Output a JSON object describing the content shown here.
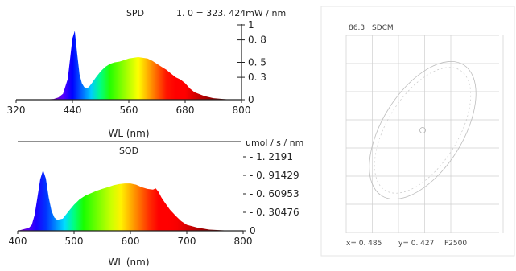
{
  "chart_data": [
    {
      "type": "area",
      "title": "SPD",
      "scale_note": "1. 0 = 323. 424mW / nm",
      "xlabel": "WL (nm)",
      "ylabel": "",
      "xlim": [
        320,
        800
      ],
      "ylim": [
        0,
        1
      ],
      "x_ticks": [
        "320",
        "440",
        "560",
        "680",
        "800"
      ],
      "y_ticks": [
        "0",
        "0. 3",
        "0. 5",
        "0. 8",
        "1"
      ],
      "y_tick_values": [
        0,
        0.3,
        0.5,
        0.8,
        1.0
      ],
      "x": [
        380,
        400,
        410,
        420,
        430,
        435,
        440,
        445,
        450,
        455,
        460,
        465,
        470,
        475,
        480,
        490,
        500,
        510,
        520,
        530,
        540,
        550,
        560,
        570,
        580,
        590,
        600,
        610,
        620,
        630,
        640,
        650,
        660,
        670,
        680,
        690,
        700,
        720,
        740,
        760,
        780
      ],
      "values": [
        0.0,
        0.01,
        0.03,
        0.08,
        0.28,
        0.55,
        0.82,
        0.92,
        0.62,
        0.34,
        0.22,
        0.17,
        0.15,
        0.17,
        0.21,
        0.3,
        0.38,
        0.44,
        0.48,
        0.5,
        0.51,
        0.53,
        0.55,
        0.56,
        0.57,
        0.56,
        0.55,
        0.52,
        0.48,
        0.44,
        0.4,
        0.35,
        0.3,
        0.27,
        0.22,
        0.15,
        0.1,
        0.05,
        0.02,
        0.01,
        0.0
      ]
    },
    {
      "type": "area",
      "title": "SQD",
      "scale_note": "umol / s / nm",
      "xlabel": "WL (nm)",
      "ylabel": "",
      "xlim": [
        400,
        800
      ],
      "ylim": [
        0,
        1.2191
      ],
      "x_ticks": [
        "400",
        "500",
        "600",
        "700",
        "800"
      ],
      "y_ticks": [
        "0",
        "- 0. 30476",
        "- 0. 60953",
        "- 0. 91429",
        "- 1. 2191"
      ],
      "y_tick_values": [
        0,
        0.30476,
        0.60953,
        0.91429,
        1.2191
      ],
      "x": [
        400,
        420,
        425,
        430,
        435,
        440,
        445,
        450,
        455,
        460,
        465,
        470,
        480,
        490,
        500,
        510,
        520,
        530,
        540,
        550,
        560,
        570,
        580,
        590,
        600,
        610,
        620,
        630,
        640,
        645,
        650,
        655,
        660,
        670,
        680,
        690,
        700,
        720,
        740,
        760,
        780
      ],
      "values": [
        0.0,
        0.05,
        0.1,
        0.26,
        0.55,
        0.85,
        1.0,
        0.86,
        0.55,
        0.33,
        0.22,
        0.18,
        0.2,
        0.32,
        0.43,
        0.52,
        0.58,
        0.62,
        0.66,
        0.69,
        0.72,
        0.75,
        0.77,
        0.78,
        0.78,
        0.76,
        0.72,
        0.69,
        0.68,
        0.7,
        0.64,
        0.55,
        0.48,
        0.35,
        0.25,
        0.16,
        0.1,
        0.05,
        0.02,
        0.01,
        0.0
      ]
    },
    {
      "type": "scatter",
      "title": "",
      "header": {
        "value": "86.3",
        "label": "SDCM"
      },
      "readout": {
        "x": "x= 0. 485",
        "y": "y= 0. 427",
        "code": "F2500"
      }
    }
  ]
}
